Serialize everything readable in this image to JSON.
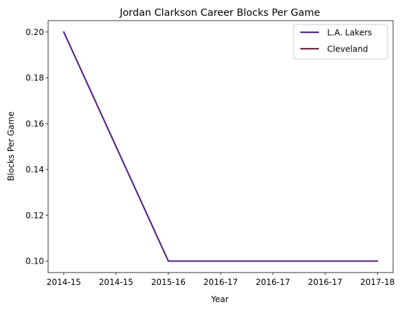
{
  "chart_data": {
    "type": "line",
    "title": "Jordan Clarkson Career Blocks Per Game",
    "xlabel": "Year",
    "ylabel": "Blocks Per Game",
    "x_tick_labels": [
      "2014-15",
      "2014-15",
      "2015-16",
      "2016-17",
      "2016-17",
      "2016-17",
      "2017-18"
    ],
    "y_ticks": [
      "0.10",
      "0.12",
      "0.14",
      "0.16",
      "0.18",
      "0.20"
    ],
    "ylim": [
      0.095,
      0.205
    ],
    "grid": false,
    "legend_position": "top-right",
    "series": [
      {
        "name": "L.A. Lakers",
        "color": "#552583",
        "values": [
          0.2,
          0.1,
          0.1,
          0.1
        ]
      },
      {
        "name": "Cleveland",
        "color": "#6F263D",
        "values": []
      }
    ],
    "x_points": [
      0,
      2,
      4,
      6
    ],
    "x_index_range": [
      -0.3,
      6.3
    ]
  }
}
